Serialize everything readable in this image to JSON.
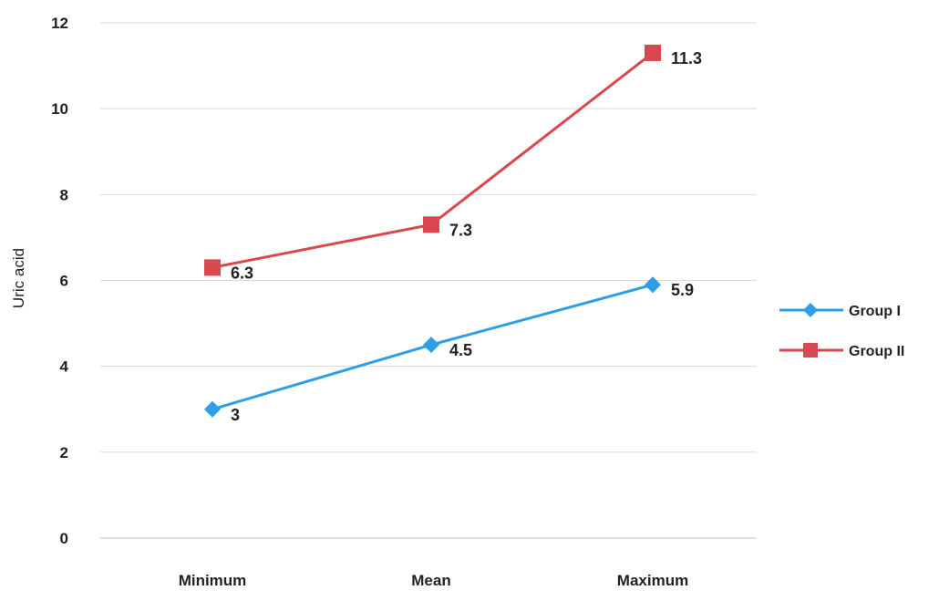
{
  "chart_data": {
    "type": "line",
    "categories": [
      "Minimum",
      "Mean",
      "Maximum"
    ],
    "series": [
      {
        "name": "Group I",
        "values": [
          3,
          4.5,
          5.9
        ],
        "color": "#2e9ee6",
        "marker": "diamond"
      },
      {
        "name": "Group II",
        "values": [
          6.3,
          7.3,
          11.3
        ],
        "color": "#d9474f",
        "marker": "square"
      }
    ],
    "data_labels": {
      "Group I": [
        "3",
        "4.5",
        "5.9"
      ],
      "Group II": [
        "6.3",
        "7.3",
        "11.3"
      ]
    },
    "ylabel": "Uric acid",
    "xlabel": "",
    "title": "",
    "ylim": [
      0,
      12
    ],
    "yticks": [
      0,
      2,
      4,
      6,
      8,
      10,
      12
    ],
    "grid": true,
    "legend_position": "right"
  }
}
